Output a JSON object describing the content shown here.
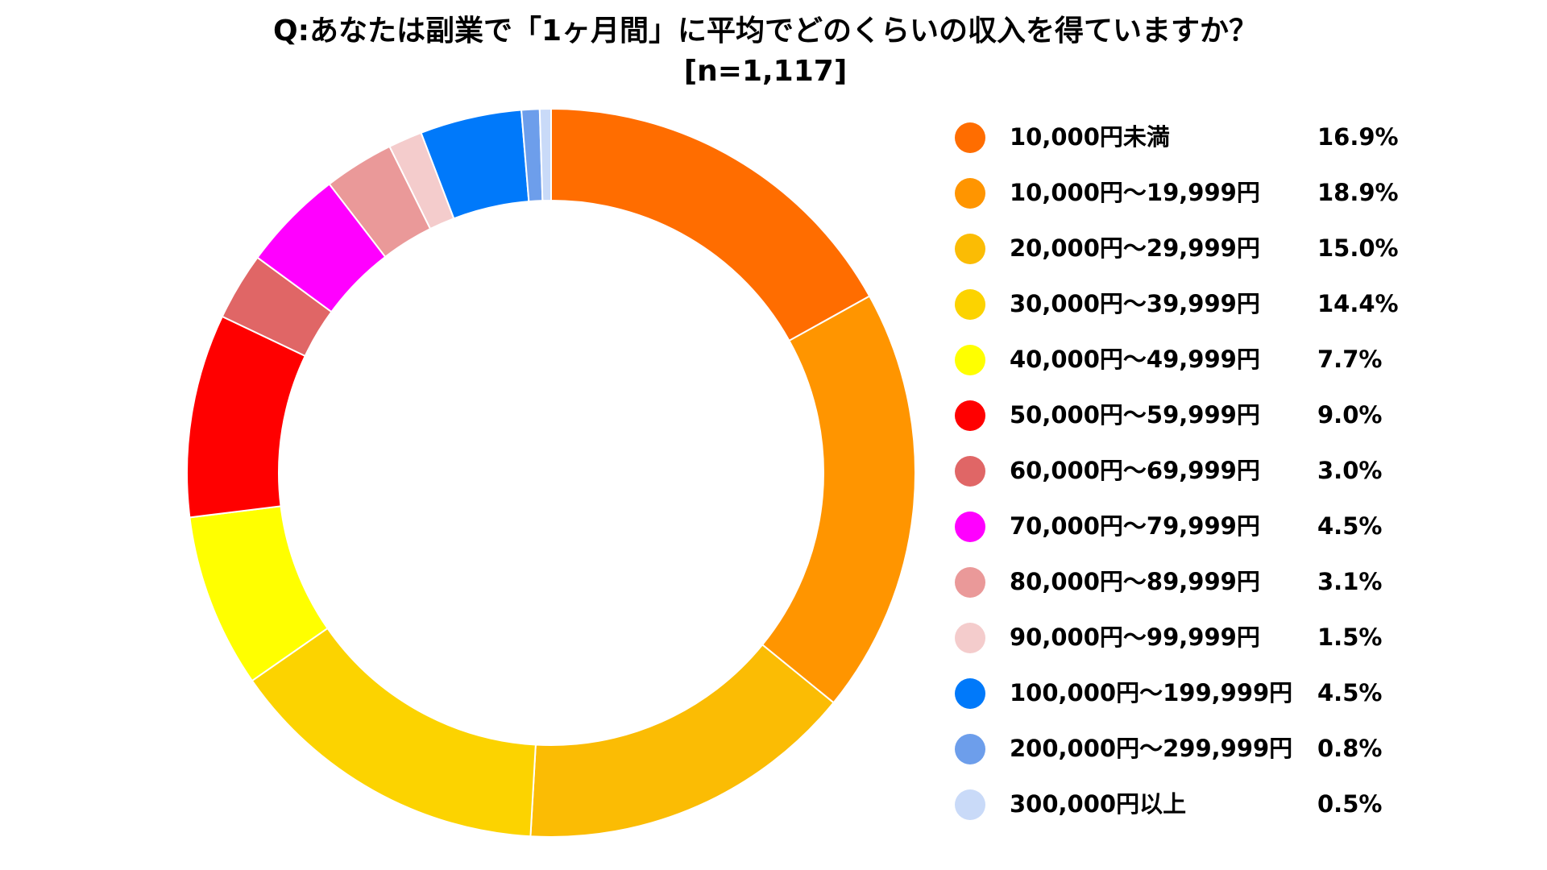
{
  "chart_data": {
    "type": "pie",
    "title": "Q:あなたは副業で「1ヶ月間」に平均でどのくらいの収入を得ていますか？",
    "subtitle": "[n=1,117]",
    "unit": "%",
    "legend_position": "right",
    "categories": [
      "10,000円未満",
      "10,000円〜19,999円",
      "20,000円〜29,999円",
      "30,000円〜39,999円",
      "40,000円〜49,999円",
      "50,000円〜59,999円",
      "60,000円〜69,999円",
      "70,000円〜79,999円",
      "80,000円〜89,999円",
      "90,000円〜99,999円",
      "100,000円〜199,999円",
      "200,000円〜299,999円",
      "300,000円以上"
    ],
    "values": [
      16.9,
      18.9,
      15.0,
      14.4,
      7.7,
      9.0,
      3.0,
      4.5,
      3.1,
      1.5,
      4.5,
      0.8,
      0.5
    ],
    "value_labels": [
      "16.9%",
      "18.9%",
      "15.0%",
      "14.4%",
      "7.7%",
      "9.0%",
      "3.0%",
      "4.5%",
      "3.1%",
      "1.5%",
      "4.5%",
      "0.8%",
      "0.5%"
    ],
    "colors": [
      "#ff6d00",
      "#ff9500",
      "#fbbc04",
      "#fcd300",
      "#ffff00",
      "#ff0000",
      "#e06666",
      "#ff00ff",
      "#ea9999",
      "#f4cccc",
      "#0079fa",
      "#6d9eeb",
      "#c9daf8"
    ]
  }
}
